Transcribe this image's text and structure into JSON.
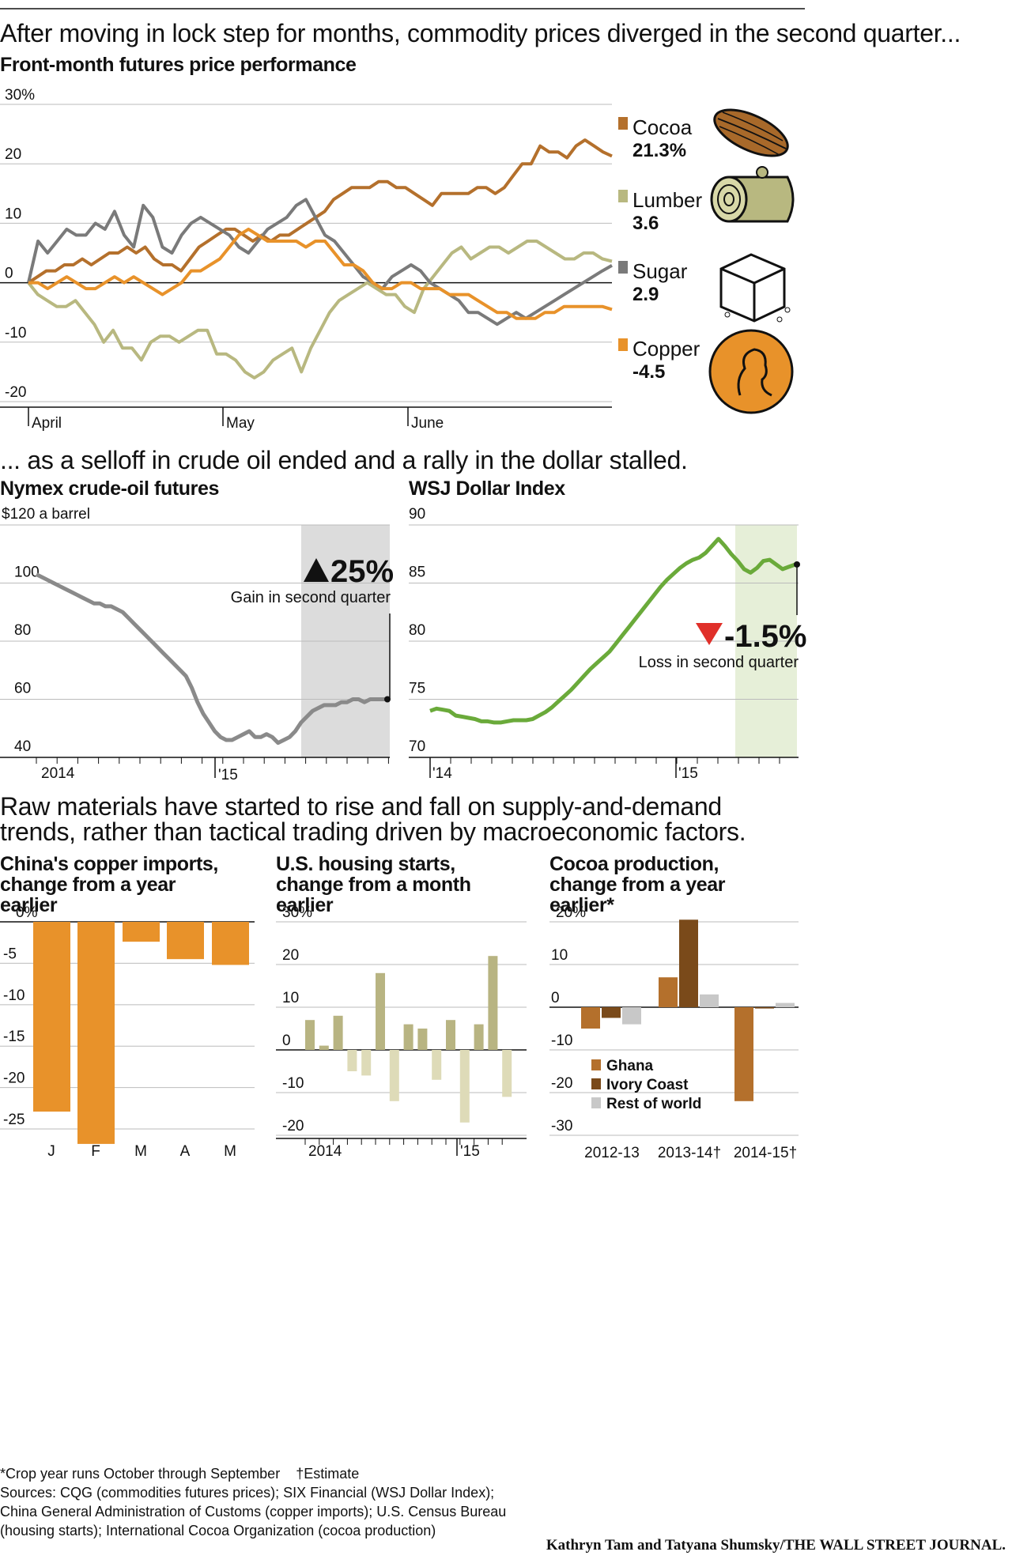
{
  "headline1": "After moving in lock step for months, commodity prices diverged in the second quarter...",
  "subhead1": "Front-month futures price performance",
  "headline2": "... as a selloff in crude oil ended and a rally in the dollar stalled.",
  "headline3": "Raw materials have started to rise and fall on supply-and-demand trends, rather than tactical trading driven by macroeconomic factors.",
  "footnote_crop": "*Crop year runs October through September",
  "footnote_estimate": "†Estimate",
  "sources": "Sources: CQG (commodities futures prices); SIX Financial (WSJ Dollar Index); China General Administration of Customs (copper imports); U.S. Census Bureau (housing starts); International Cocoa Organization (cocoa production)",
  "credit": "Kathryn Tam and Tatyana Shumsky/THE WALL STREET JOURNAL.",
  "colors": {
    "cocoa": "#b4702c",
    "lumber": "#b8b880",
    "sugar": "#7a7a7a",
    "copper": "#e8922a",
    "oil": "#8a8a8a",
    "dollar": "#6aaa3a",
    "shade_oil": "#dcdcdc",
    "shade_dollar": "#e6efd8",
    "ghana": "#b4702c",
    "ivory": "#7a4a1a",
    "rest": "#c8c8c8"
  },
  "chart_data": [
    {
      "type": "line",
      "title": "Front-month futures price performance",
      "ylabel": "%",
      "ylim": [
        -20,
        30
      ],
      "yticks": [
        "30%",
        "20",
        "10",
        "0",
        "-10",
        "-20"
      ],
      "xticks": [
        "April",
        "May",
        "June"
      ],
      "x_range": [
        0,
        62
      ],
      "series": [
        {
          "name": "Cocoa",
          "final_label": "21.3%",
          "color_key": "cocoa",
          "values": [
            0,
            1,
            2,
            2,
            3,
            3,
            4,
            3,
            4,
            5,
            5,
            6,
            5,
            6,
            4,
            3,
            3,
            2,
            4,
            6,
            7,
            8,
            9,
            9,
            8,
            7,
            8,
            7,
            8,
            8,
            9,
            10,
            11,
            12,
            14,
            15,
            16,
            16,
            16,
            17,
            17,
            16,
            16,
            15,
            14,
            13,
            15,
            15,
            15,
            15,
            16,
            16,
            15,
            16,
            18,
            20,
            20,
            23,
            22,
            22,
            21,
            23,
            24,
            23,
            22,
            21.3
          ]
        },
        {
          "name": "Lumber",
          "final_label": "3.6",
          "color_key": "lumber",
          "values": [
            0,
            -2,
            -3,
            -4,
            -4,
            -3,
            -5,
            -7,
            -10,
            -8,
            -11,
            -11,
            -13,
            -10,
            -9,
            -9,
            -10,
            -9,
            -8,
            -8,
            -12,
            -12,
            -13,
            -15,
            -16,
            -15,
            -13,
            -12,
            -11,
            -15,
            -11,
            -8,
            -5,
            -3,
            -2,
            -1,
            0,
            -1,
            -2,
            -2,
            -4,
            -5,
            -1,
            1,
            3,
            5,
            6,
            4,
            5,
            6,
            6,
            5,
            6,
            7,
            7,
            6,
            5,
            4,
            4,
            5,
            5,
            4,
            3.6
          ]
        },
        {
          "name": "Sugar",
          "final_label": "2.9",
          "color_key": "sugar",
          "values": [
            0,
            7,
            5,
            7,
            9,
            8,
            8,
            10,
            9,
            12,
            8,
            6,
            13,
            11,
            6,
            5,
            8,
            10,
            11,
            10,
            9,
            8,
            6,
            5,
            7,
            9,
            10,
            11,
            13,
            14,
            11,
            8,
            7,
            5,
            3,
            1,
            0,
            -1,
            1,
            2,
            3,
            2,
            0,
            -1,
            -2,
            -3,
            -5,
            -5,
            -6,
            -7,
            -6,
            -5,
            -6,
            -5,
            -4,
            -3,
            -2,
            -1,
            0,
            1,
            2,
            2.9
          ]
        },
        {
          "name": "Copper",
          "final_label": "-4.5",
          "color_key": "copper",
          "values": [
            0,
            0,
            -1,
            0,
            1,
            0,
            -1,
            -1,
            0,
            1,
            0,
            1,
            0,
            -1,
            -2,
            -1,
            0,
            2,
            2,
            3,
            4,
            6,
            8,
            9,
            8,
            7,
            7,
            7,
            7,
            6,
            7,
            7,
            5,
            3,
            3,
            2,
            0,
            -1,
            -1,
            0,
            0,
            -1,
            -1,
            -1,
            -2,
            -2,
            -2,
            -3,
            -4,
            -5,
            -5,
            -6,
            -6,
            -6,
            -5,
            -5,
            -4,
            -4,
            -4,
            -4,
            -4,
            -4.5
          ]
        }
      ]
    },
    {
      "type": "line",
      "title": "Nymex crude-oil futures",
      "ylabel": "$120 a barrel",
      "ylim": [
        40,
        120
      ],
      "yticks": [
        "$120 a barrel",
        "100",
        "80",
        "60",
        "40"
      ],
      "xticks": [
        "2014",
        "'15"
      ],
      "annotation_value": "25%",
      "annotation_text": "Gain in second quarter",
      "values": [
        103,
        102,
        101,
        100,
        99,
        98,
        97,
        96,
        95,
        94,
        93,
        93,
        92,
        92,
        91,
        90,
        88,
        86,
        84,
        82,
        80,
        78,
        76,
        74,
        72,
        70,
        68,
        64,
        59,
        55,
        52,
        49,
        47,
        46,
        46,
        47,
        48,
        49,
        47,
        47,
        48,
        47,
        45,
        46,
        47,
        49,
        52,
        54,
        56,
        57,
        58,
        58,
        58,
        59,
        59,
        60,
        60,
        59,
        60,
        60,
        60,
        60
      ]
    },
    {
      "type": "line",
      "title": "WSJ Dollar Index",
      "ylim": [
        70,
        90
      ],
      "yticks": [
        "90",
        "85",
        "80",
        "75",
        "70"
      ],
      "xticks": [
        "'14",
        "'15"
      ],
      "annotation_value": "-1.5%",
      "annotation_text": "Loss in second quarter",
      "values": [
        74,
        74.2,
        74.1,
        74,
        73.6,
        73.5,
        73.4,
        73.3,
        73.1,
        73.1,
        73,
        73,
        73.1,
        73.2,
        73.2,
        73.2,
        73.3,
        73.6,
        73.9,
        74.3,
        74.8,
        75.3,
        75.8,
        76.4,
        77,
        77.6,
        78.1,
        78.6,
        79.1,
        79.8,
        80.5,
        81.2,
        81.9,
        82.6,
        83.3,
        84,
        84.7,
        85.3,
        85.8,
        86.3,
        86.7,
        87,
        87.2,
        87.6,
        88.2,
        88.8,
        88.2,
        87.5,
        86.9,
        86.2,
        85.9,
        86.3,
        86.9,
        87,
        86.6,
        86.2,
        86.4,
        86.6
      ]
    },
    {
      "type": "bar",
      "title": "China's copper imports, change from a year earlier",
      "ylim": [
        -27,
        0
      ],
      "yticks": [
        "0%",
        "-5",
        "-10",
        "-15",
        "-20",
        "-25"
      ],
      "categories": [
        "J",
        "F",
        "M",
        "A",
        "M"
      ],
      "values": [
        -22.9,
        -26.8,
        -2.4,
        -4.5,
        -5.2
      ]
    },
    {
      "type": "bar",
      "title": "U.S. housing starts, change from a month earlier",
      "ylim": [
        -20,
        30
      ],
      "yticks": [
        "30%",
        "20",
        "10",
        "0",
        "-10",
        "-20"
      ],
      "xticks": [
        "2014",
        "'15"
      ],
      "values": [
        7,
        1,
        8,
        -5,
        -6,
        18,
        -12,
        6,
        5,
        -7,
        7,
        -17,
        6,
        22,
        -11
      ]
    },
    {
      "type": "bar",
      "title": "Cocoa production, change from a year earlier*",
      "ylim": [
        -30,
        20
      ],
      "yticks": [
        "20%",
        "10",
        "0",
        "-10",
        "-20",
        "-30"
      ],
      "categories": [
        "2012-13",
        "2013-14†",
        "2014-15†"
      ],
      "series": [
        {
          "name": "Ghana",
          "values": [
            -5,
            7,
            -22
          ]
        },
        {
          "name": "Ivory Coast",
          "values": [
            -2.5,
            20.5,
            -0.3
          ]
        },
        {
          "name": "Rest of world",
          "values": [
            -4,
            3,
            1
          ]
        }
      ]
    }
  ]
}
